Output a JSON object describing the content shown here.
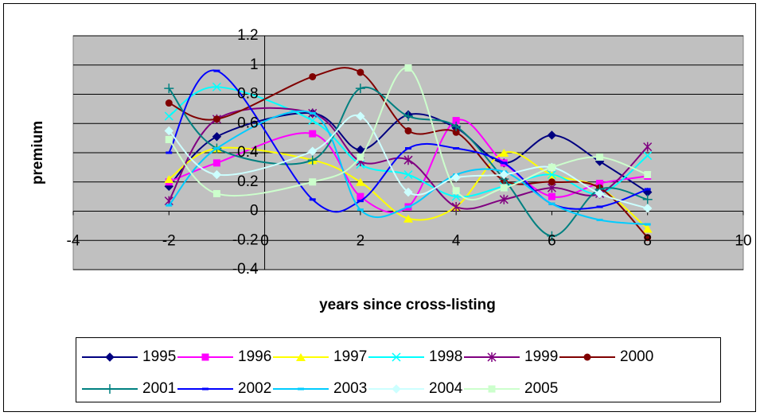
{
  "chart_data": {
    "type": "line",
    "smooth": true,
    "y_label": "premium",
    "x_label": "years since cross-listing",
    "x": [
      -2,
      -1,
      1,
      2,
      3,
      4,
      5,
      6,
      7,
      8
    ],
    "xlim": [
      -4,
      10
    ],
    "xticks": [
      -4,
      -2,
      0,
      2,
      4,
      6,
      8,
      10
    ],
    "ylim": [
      -0.4,
      1.2
    ],
    "yticks": [
      -0.4,
      -0.2,
      0,
      0.2,
      0.4,
      0.6,
      0.8,
      1,
      1.2
    ],
    "grid": true,
    "legend": "bottom",
    "series": [
      {
        "name": "1995",
        "color": "#000080",
        "marker": "diamond",
        "values": [
          0.17,
          0.51,
          0.67,
          0.42,
          0.66,
          0.57,
          0.33,
          0.52,
          0.34,
          0.13
        ]
      },
      {
        "name": "1996",
        "color": "#ff00ff",
        "marker": "square",
        "values": [
          0.2,
          0.33,
          0.53,
          0.1,
          0.03,
          0.62,
          0.33,
          0.1,
          0.19,
          0.24
        ]
      },
      {
        "name": "1997",
        "color": "#ffff00",
        "marker": "triangle",
        "values": [
          0.22,
          0.43,
          0.35,
          0.2,
          -0.05,
          0.03,
          0.4,
          0.25,
          0.16,
          -0.12
        ]
      },
      {
        "name": "1998",
        "color": "#00ffff",
        "marker": "x",
        "values": [
          0.65,
          0.85,
          0.62,
          0.32,
          0.25,
          0.1,
          0.17,
          0.25,
          0.12,
          0.38
        ]
      },
      {
        "name": "1999",
        "color": "#800080",
        "marker": "star",
        "values": [
          0.07,
          0.63,
          0.67,
          0.34,
          0.35,
          0.03,
          0.08,
          0.16,
          0.12,
          0.44
        ]
      },
      {
        "name": "2000",
        "color": "#800000",
        "marker": "circle",
        "values": [
          0.74,
          0.63,
          0.92,
          0.95,
          0.55,
          0.54,
          0.21,
          0.2,
          0.16,
          -0.18
        ]
      },
      {
        "name": "2001",
        "color": "#008080",
        "marker": "plus",
        "values": [
          0.84,
          0.43,
          0.35,
          0.84,
          0.65,
          0.58,
          0.22,
          -0.17,
          0.15,
          0.08
        ]
      },
      {
        "name": "2002",
        "color": "#0000ff",
        "marker": "dash",
        "values": [
          0.4,
          0.96,
          0.08,
          0.07,
          0.43,
          0.43,
          0.33,
          0.05,
          0.03,
          0.15
        ]
      },
      {
        "name": "2003",
        "color": "#00ccff",
        "marker": "dash",
        "values": [
          0.04,
          0.43,
          0.67,
          0.01,
          0.03,
          0.25,
          0.27,
          0.05,
          -0.06,
          -0.09
        ]
      },
      {
        "name": "2004",
        "color": "#ccffff",
        "marker": "diamond",
        "values": [
          0.55,
          0.25,
          0.41,
          0.65,
          0.13,
          0.23,
          0.25,
          0.3,
          0.12,
          0.02
        ]
      },
      {
        "name": "2005",
        "color": "#ccffcc",
        "marker": "square",
        "values": [
          0.49,
          0.12,
          0.2,
          0.37,
          0.98,
          0.14,
          0.16,
          0.3,
          0.37,
          0.25
        ]
      }
    ]
  }
}
